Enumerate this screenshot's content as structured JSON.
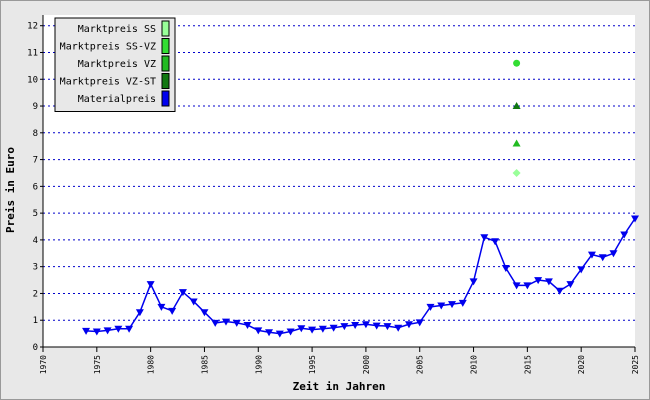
{
  "chart_data": {
    "type": "line",
    "x_label": "Zeit in Jahren",
    "y_label": "Preis in Euro",
    "xlim": [
      1970,
      2025
    ],
    "xticks": [
      1970,
      1975,
      1980,
      1985,
      1990,
      1995,
      2000,
      2005,
      2010,
      2015,
      2020,
      2025
    ],
    "ylim": [
      0,
      12.4
    ],
    "yticks": [
      0,
      1,
      2,
      3,
      4,
      5,
      6,
      7,
      8,
      9,
      10,
      11,
      12
    ],
    "grid": true,
    "legend": "top-left",
    "series": [
      {
        "name": "Marktpreis SS",
        "color": "#99ff99",
        "marker": "diamond",
        "x": [
          2014
        ],
        "values": [
          6.5
        ]
      },
      {
        "name": "Marktpreis SS-VZ",
        "color": "#33dd33",
        "marker": "circle",
        "x": [
          2014
        ],
        "values": [
          10.6
        ]
      },
      {
        "name": "Marktpreis VZ",
        "color": "#22bb22",
        "marker": "triangle",
        "x": [
          2014
        ],
        "values": [
          7.6
        ]
      },
      {
        "name": "Marktpreis VZ-ST",
        "color": "#117711",
        "marker": "triangle",
        "x": [
          2014
        ],
        "values": [
          9.0
        ]
      },
      {
        "name": "Materialpreis",
        "color": "#0000ee",
        "marker": "triangle-down",
        "line": true,
        "x": [
          1974,
          1975,
          1976,
          1977,
          1978,
          1979,
          1980,
          1981,
          1982,
          1983,
          1984,
          1985,
          1986,
          1987,
          1988,
          1989,
          1990,
          1991,
          1992,
          1993,
          1994,
          1995,
          1996,
          1997,
          1998,
          1999,
          2000,
          2001,
          2002,
          2003,
          2004,
          2005,
          2006,
          2007,
          2008,
          2009,
          2010,
          2011,
          2012,
          2013,
          2014,
          2015,
          2016,
          2017,
          2018,
          2019,
          2020,
          2021,
          2022,
          2023,
          2024,
          2025
        ],
        "values": [
          0.6,
          0.58,
          0.62,
          0.68,
          0.68,
          1.3,
          2.35,
          1.5,
          1.35,
          2.05,
          1.7,
          1.3,
          0.9,
          0.95,
          0.9,
          0.82,
          0.62,
          0.55,
          0.5,
          0.58,
          0.7,
          0.65,
          0.68,
          0.72,
          0.78,
          0.82,
          0.85,
          0.8,
          0.78,
          0.72,
          0.85,
          0.92,
          1.5,
          1.55,
          1.6,
          1.65,
          2.45,
          4.1,
          3.95,
          2.95,
          2.3,
          2.3,
          2.5,
          2.45,
          2.1,
          2.35,
          2.9,
          3.45,
          3.35,
          3.5,
          4.2,
          4.8
        ]
      }
    ]
  }
}
